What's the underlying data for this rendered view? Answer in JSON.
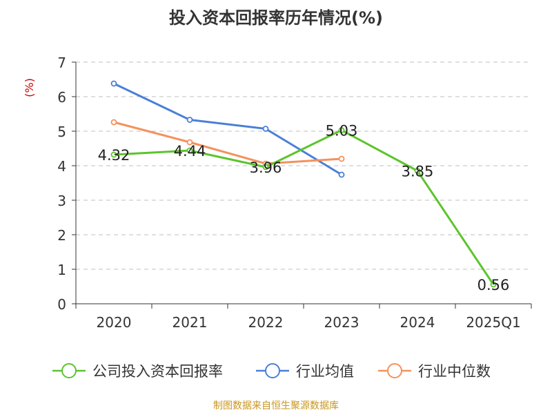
{
  "chart_data": {
    "type": "line",
    "title": "投入资本回报率历年情况(%)",
    "ylabel": "(%)",
    "xlabel": "",
    "ylim": [
      0,
      7
    ],
    "yticks": [
      0,
      1,
      2,
      3,
      4,
      5,
      6,
      7
    ],
    "categories": [
      "2020",
      "2021",
      "2022",
      "2023",
      "2024",
      "2025Q1"
    ],
    "grid": true,
    "legend_position": "bottom",
    "series": [
      {
        "name": "公司投入资本回报率",
        "color": "#5cc42b",
        "values": [
          4.32,
          4.44,
          3.96,
          5.03,
          3.85,
          0.56
        ],
        "labels": [
          "4.32",
          "4.44",
          "3.96",
          "5.03",
          "3.85",
          "0.56"
        ]
      },
      {
        "name": "行业均值",
        "color": "#4a7fd8",
        "values": [
          6.38,
          5.33,
          5.07,
          3.74,
          null,
          null
        ]
      },
      {
        "name": "行业中位数",
        "color": "#f4915c",
        "values": [
          5.26,
          4.68,
          4.06,
          4.2,
          null,
          null
        ]
      }
    ],
    "source": "制图数据来自恒生聚源数据库"
  }
}
